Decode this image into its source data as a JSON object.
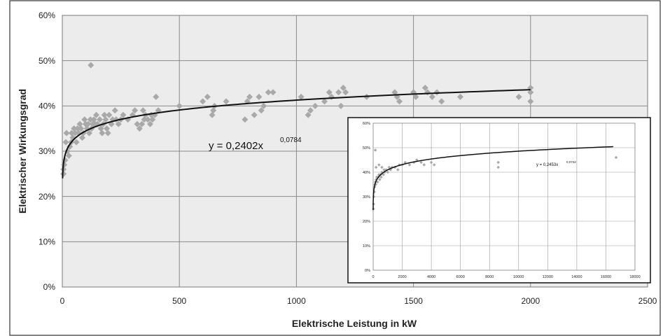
{
  "chart_data": [
    {
      "type": "scatter",
      "xlabel": "Elektrische Leistung in kW",
      "ylabel": "Elektrischer Wirkungsgrad",
      "xlim": [
        0,
        2500
      ],
      "ylim": [
        0,
        0.6
      ],
      "x_ticks": [
        "0",
        "500",
        "1000",
        "1500",
        "2000",
        "2500"
      ],
      "y_ticks": [
        "0%",
        "10%",
        "20%",
        "30%",
        "40%",
        "50%",
        "60%"
      ],
      "grid": true,
      "trendline": {
        "a": 0.2402,
        "b": 0.0784,
        "x_range": [
          1,
          2000
        ]
      },
      "equation": {
        "main": "y = 0,2402x",
        "exponent": "0,0784"
      },
      "series": [
        {
          "marker": "diamond",
          "color": "#a9a9a9",
          "points": [
            [
              5,
              0.25
            ],
            [
              5,
              0.26
            ],
            [
              8,
              0.27
            ],
            [
              12,
              0.28
            ],
            [
              15,
              0.32
            ],
            [
              18,
              0.34
            ],
            [
              22,
              0.3
            ],
            [
              28,
              0.29
            ],
            [
              32,
              0.31
            ],
            [
              38,
              0.32
            ],
            [
              40,
              0.34
            ],
            [
              45,
              0.33
            ],
            [
              50,
              0.35
            ],
            [
              55,
              0.34
            ],
            [
              60,
              0.32
            ],
            [
              65,
              0.35
            ],
            [
              70,
              0.34
            ],
            [
              75,
              0.36
            ],
            [
              80,
              0.35
            ],
            [
              85,
              0.33
            ],
            [
              90,
              0.34
            ],
            [
              95,
              0.37
            ],
            [
              100,
              0.36
            ],
            [
              105,
              0.35
            ],
            [
              110,
              0.36
            ],
            [
              115,
              0.34
            ],
            [
              120,
              0.37
            ],
            [
              122,
              0.49
            ],
            [
              125,
              0.35
            ],
            [
              130,
              0.36
            ],
            [
              135,
              0.37
            ],
            [
              140,
              0.36
            ],
            [
              145,
              0.38
            ],
            [
              150,
              0.36
            ],
            [
              160,
              0.37
            ],
            [
              165,
              0.35
            ],
            [
              170,
              0.34
            ],
            [
              175,
              0.36
            ],
            [
              180,
              0.38
            ],
            [
              185,
              0.37
            ],
            [
              190,
              0.35
            ],
            [
              195,
              0.34
            ],
            [
              200,
              0.38
            ],
            [
              210,
              0.36
            ],
            [
              215,
              0.37
            ],
            [
              225,
              0.39
            ],
            [
              230,
              0.37
            ],
            [
              240,
              0.36
            ],
            [
              250,
              0.37
            ],
            [
              260,
              0.38
            ],
            [
              280,
              0.37
            ],
            [
              300,
              0.38
            ],
            [
              310,
              0.39
            ],
            [
              320,
              0.36
            ],
            [
              330,
              0.35
            ],
            [
              340,
              0.36
            ],
            [
              345,
              0.39
            ],
            [
              350,
              0.37
            ],
            [
              355,
              0.38
            ],
            [
              365,
              0.37
            ],
            [
              375,
              0.36
            ],
            [
              380,
              0.38
            ],
            [
              385,
              0.37
            ],
            [
              395,
              0.38
            ],
            [
              400,
              0.42
            ],
            [
              410,
              0.39
            ],
            [
              500,
              0.4
            ],
            [
              600,
              0.41
            ],
            [
              620,
              0.42
            ],
            [
              640,
              0.38
            ],
            [
              645,
              0.39
            ],
            [
              650,
              0.4
            ],
            [
              700,
              0.41
            ],
            [
              780,
              0.37
            ],
            [
              790,
              0.41
            ],
            [
              800,
              0.42
            ],
            [
              820,
              0.38
            ],
            [
              840,
              0.42
            ],
            [
              850,
              0.39
            ],
            [
              860,
              0.4
            ],
            [
              880,
              0.43
            ],
            [
              900,
              0.43
            ],
            [
              1020,
              0.42
            ],
            [
              1050,
              0.38
            ],
            [
              1060,
              0.39
            ],
            [
              1080,
              0.4
            ],
            [
              1120,
              0.41
            ],
            [
              1140,
              0.43
            ],
            [
              1150,
              0.42
            ],
            [
              1180,
              0.43
            ],
            [
              1190,
              0.4
            ],
            [
              1200,
              0.44
            ],
            [
              1210,
              0.43
            ],
            [
              1300,
              0.42
            ],
            [
              1420,
              0.43
            ],
            [
              1430,
              0.42
            ],
            [
              1440,
              0.41
            ],
            [
              1500,
              0.43
            ],
            [
              1510,
              0.42
            ],
            [
              1550,
              0.44
            ],
            [
              1560,
              0.43
            ],
            [
              1580,
              0.42
            ],
            [
              1600,
              0.43
            ],
            [
              1620,
              0.41
            ],
            [
              1700,
              0.42
            ],
            [
              1950,
              0.42
            ],
            [
              2000,
              0.41
            ],
            [
              2000,
              0.43
            ],
            [
              2000,
              0.44
            ]
          ]
        }
      ]
    },
    {
      "type": "scatter",
      "inset": true,
      "xlim": [
        0,
        18000
      ],
      "ylim": [
        0,
        0.6
      ],
      "x_ticks": [
        "0",
        "2000",
        "4000",
        "6000",
        "8000",
        "10000",
        "12000",
        "14000",
        "16000",
        "18000"
      ],
      "y_ticks": [
        "0%",
        "10%",
        "20%",
        "30%",
        "40%",
        "50%",
        "60%"
      ],
      "grid": true,
      "trendline": {
        "a": 0.2453,
        "b": 0.0742,
        "x_range": [
          1,
          16500
        ]
      },
      "equation": {
        "main": "y = 0,2453x",
        "exponent": "0,0742"
      },
      "series": [
        {
          "marker": "diamond",
          "color": "#a9a9a9",
          "points": [
            [
              20,
              0.25
            ],
            [
              30,
              0.27
            ],
            [
              50,
              0.3
            ],
            [
              80,
              0.32
            ],
            [
              100,
              0.34
            ],
            [
              120,
              0.35
            ],
            [
              150,
              0.36
            ],
            [
              180,
              0.35
            ],
            [
              200,
              0.37
            ],
            [
              250,
              0.38
            ],
            [
              300,
              0.36
            ],
            [
              350,
              0.38
            ],
            [
              400,
              0.39
            ],
            [
              450,
              0.37
            ],
            [
              500,
              0.39
            ],
            [
              550,
              0.38
            ],
            [
              600,
              0.4
            ],
            [
              700,
              0.39
            ],
            [
              750,
              0.41
            ],
            [
              800,
              0.4
            ],
            [
              900,
              0.41
            ],
            [
              1000,
              0.4
            ],
            [
              1100,
              0.42
            ],
            [
              1200,
              0.41
            ],
            [
              1300,
              0.42
            ],
            [
              1500,
              0.42
            ],
            [
              1700,
              0.41
            ],
            [
              1800,
              0.43
            ],
            [
              2000,
              0.43
            ],
            [
              2200,
              0.44
            ],
            [
              2500,
              0.43
            ],
            [
              2800,
              0.44
            ],
            [
              3000,
              0.45
            ],
            [
              3300,
              0.44
            ],
            [
              3500,
              0.43
            ],
            [
              4000,
              0.44
            ],
            [
              4200,
              0.43
            ],
            [
              8600,
              0.42
            ],
            [
              8600,
              0.44
            ],
            [
              16700,
              0.46
            ],
            [
              200,
              0.42
            ],
            [
              400,
              0.43
            ],
            [
              600,
              0.42
            ],
            [
              150,
              0.49
            ]
          ]
        }
      ]
    }
  ]
}
